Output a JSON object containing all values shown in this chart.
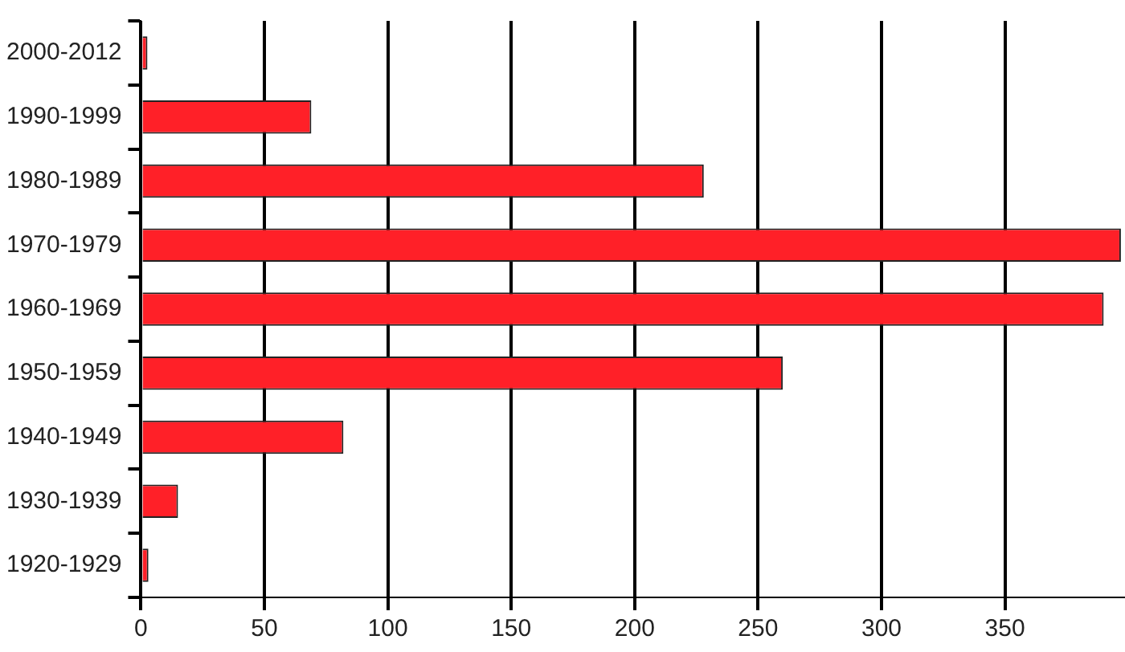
{
  "chart_data": {
    "type": "bar",
    "orientation": "horizontal",
    "categories": [
      "2000-2012",
      "1990-1999",
      "1980-1989",
      "1970-1979",
      "1960-1969",
      "1950-1959",
      "1940-1949",
      "1930-1939",
      "1920-1929"
    ],
    "values": [
      1,
      69,
      228,
      397,
      390,
      260,
      82,
      15,
      3
    ],
    "color": "#ff2028",
    "xlim": [
      0,
      398
    ],
    "xticks": [
      0,
      50,
      100,
      150,
      200,
      250,
      300,
      350
    ],
    "grid": "x",
    "legend": false
  }
}
